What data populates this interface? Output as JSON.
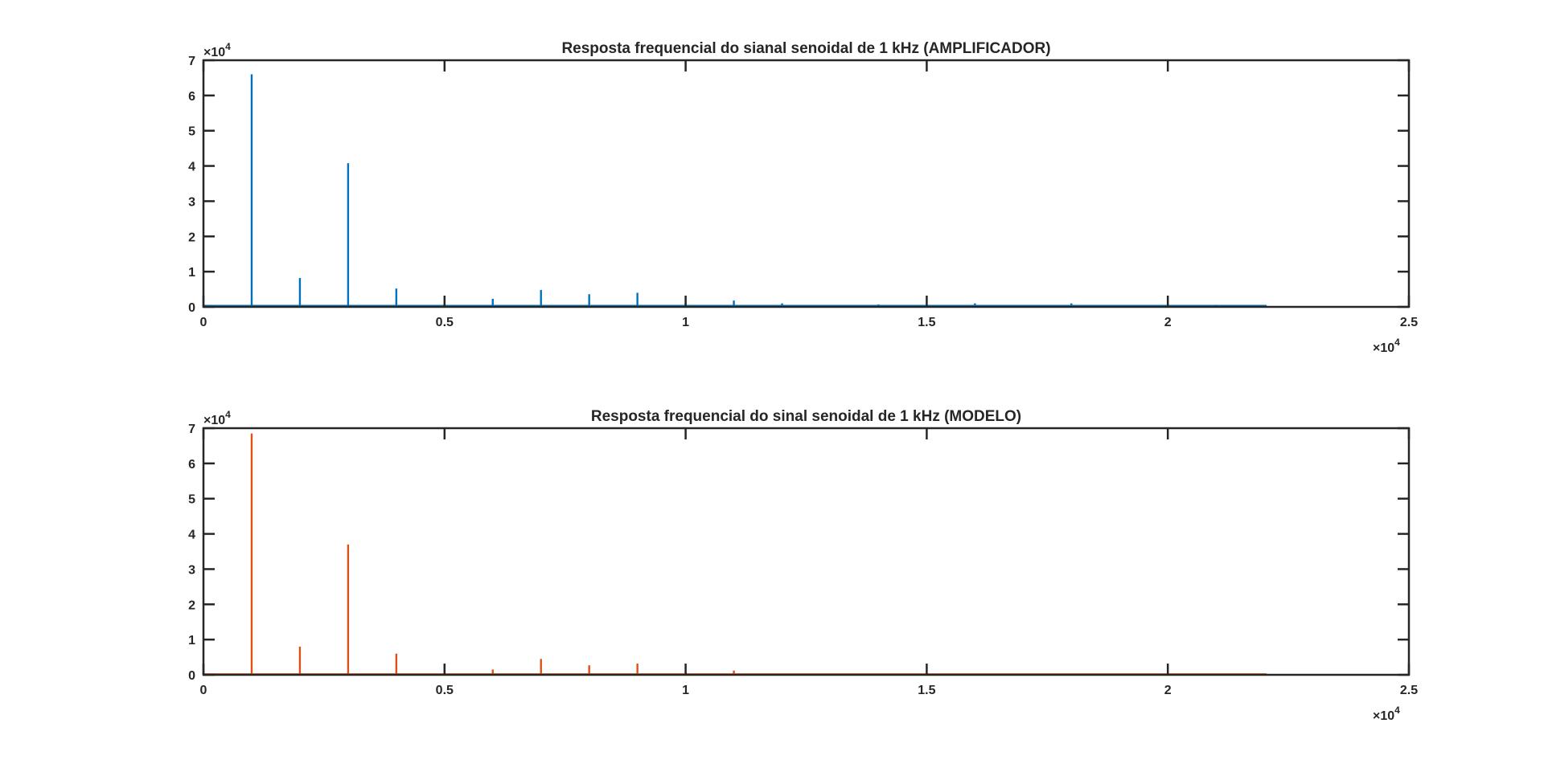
{
  "chart_data": [
    {
      "type": "line",
      "title": "Resposta frequencial do sianal senoidal de 1 kHz (AMPLIFICADOR)",
      "color": "#0072BD",
      "xlim": [
        0,
        25000
      ],
      "ylim": [
        0,
        70000
      ],
      "x_ticks": [
        0,
        5000,
        10000,
        15000,
        20000,
        25000
      ],
      "x_tick_labels": [
        "0",
        "0.5",
        "1",
        "1.5",
        "2",
        "2.5"
      ],
      "y_ticks": [
        0,
        10000,
        20000,
        30000,
        40000,
        50000,
        60000,
        70000
      ],
      "y_tick_labels": [
        "0",
        "1",
        "2",
        "3",
        "4",
        "5",
        "6",
        "7"
      ],
      "x_exponent": "×10",
      "x_exponent_power": "4",
      "y_exponent": "×10",
      "y_exponent_power": "4",
      "baseline": 300,
      "x_end": 22050,
      "x": [
        1000,
        2000,
        3000,
        4000,
        5000,
        6000,
        7000,
        8000,
        9000,
        10000,
        11000,
        12000,
        13000,
        14000,
        16000,
        17000,
        18000,
        21000
      ],
      "y": [
        66000,
        8200,
        40800,
        5200,
        1200,
        2300,
        4800,
        3600,
        4000,
        1200,
        1800,
        1000,
        500,
        700,
        1000,
        500,
        1000,
        600
      ]
    },
    {
      "type": "line",
      "title": "Resposta frequencial do sinal senoidal de 1 kHz  (MODELO)",
      "color": "#D95319",
      "xlim": [
        0,
        25000
      ],
      "ylim": [
        0,
        70000
      ],
      "x_ticks": [
        0,
        5000,
        10000,
        15000,
        20000,
        25000
      ],
      "x_tick_labels": [
        "0",
        "0.5",
        "1",
        "1.5",
        "2",
        "2.5"
      ],
      "y_ticks": [
        0,
        10000,
        20000,
        30000,
        40000,
        50000,
        60000,
        70000
      ],
      "y_tick_labels": [
        "0",
        "1",
        "2",
        "3",
        "4",
        "5",
        "6",
        "7"
      ],
      "x_exponent": "×10",
      "x_exponent_power": "4",
      "y_exponent": "×10",
      "y_exponent_power": "4",
      "baseline": 150,
      "x_end": 22050,
      "x": [
        1000,
        2000,
        3000,
        4000,
        5000,
        6000,
        7000,
        8000,
        9000,
        10000,
        11000
      ],
      "y": [
        68500,
        8000,
        37000,
        6000,
        3000,
        1500,
        4500,
        2700,
        3200,
        600,
        1200
      ]
    }
  ]
}
